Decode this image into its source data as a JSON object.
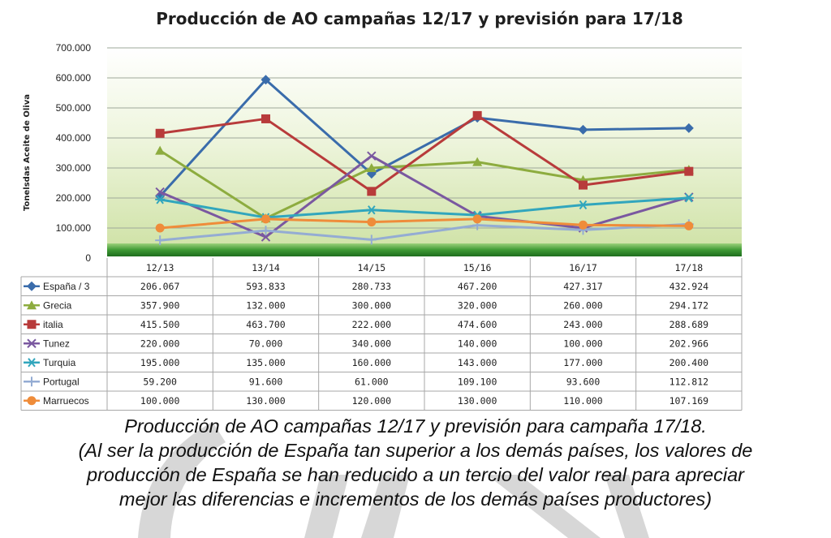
{
  "chart_data": {
    "type": "line",
    "title": "Producción de AO campañas 12/17 y previsión para 17/18",
    "ylabel": "Tonelsdas  Aceite de Oliva",
    "ylim": [
      0,
      700000
    ],
    "y_ticks": [
      "0",
      "100.000",
      "200.000",
      "300.000",
      "400.000",
      "500.000",
      "600.000",
      "700.000"
    ],
    "y_tick_values": [
      0,
      100000,
      200000,
      300000,
      400000,
      500000,
      600000,
      700000
    ],
    "categories": [
      "12/13",
      "13/14",
      "14/15",
      "15/16",
      "16/17",
      "17/18"
    ],
    "legend": "data-table",
    "series": [
      {
        "name": "España / 3",
        "color": "#3a6cab",
        "marker": "diamond",
        "values": [
          206067,
          593833,
          280733,
          467200,
          427317,
          432924
        ],
        "labels": [
          "206.067",
          "593.833",
          "280.733",
          "467.200",
          "427.317",
          "432.924"
        ]
      },
      {
        "name": "Grecia",
        "color": "#8dac3f",
        "marker": "triangle",
        "values": [
          357900,
          132000,
          300000,
          320000,
          260000,
          294172
        ],
        "labels": [
          "357.900",
          "132.000",
          "300.000",
          "320.000",
          "260.000",
          "294.172"
        ]
      },
      {
        "name": "italia",
        "color": "#b83b3b",
        "marker": "square",
        "values": [
          415500,
          463700,
          222000,
          474600,
          243000,
          288689
        ],
        "labels": [
          "415.500",
          "463.700",
          "222.000",
          "474.600",
          "243.000",
          "288.689"
        ]
      },
      {
        "name": "Tunez",
        "color": "#7a58a0",
        "marker": "x",
        "values": [
          220000,
          70000,
          340000,
          140000,
          100000,
          202966
        ],
        "labels": [
          "220.000",
          "70.000",
          "340.000",
          "140.000",
          "100.000",
          "202.966"
        ]
      },
      {
        "name": "Turquia",
        "color": "#31a6bd",
        "marker": "star",
        "values": [
          195000,
          135000,
          160000,
          143000,
          177000,
          200400
        ],
        "labels": [
          "195.000",
          "135.000",
          "160.000",
          "143.000",
          "177.000",
          "200.400"
        ]
      },
      {
        "name": "Portugal",
        "color": "#94acd3",
        "marker": "plus",
        "values": [
          59200,
          91600,
          61000,
          109100,
          93600,
          112812
        ],
        "labels": [
          "59.200",
          "91.600",
          "61.000",
          "109.100",
          "93.600",
          "112.812"
        ]
      },
      {
        "name": "Marruecos",
        "color": "#ef8c3a",
        "marker": "circle",
        "values": [
          100000,
          130000,
          120000,
          130000,
          110000,
          107169
        ],
        "labels": [
          "100.000",
          "130.000",
          "120.000",
          "130.000",
          "110.000",
          "107.169"
        ]
      }
    ]
  },
  "caption": {
    "line1": "Producción de AO campañas 12/17 y previsión para campaña 17/18.",
    "line2": "(Al ser la producción de España tan superior a los demás países, los valores de",
    "line3": "producción de España se han reducido a un tercio del valor real para apreciar",
    "line4": "mejor las diferencias e incrementos de los demás países productores)"
  }
}
